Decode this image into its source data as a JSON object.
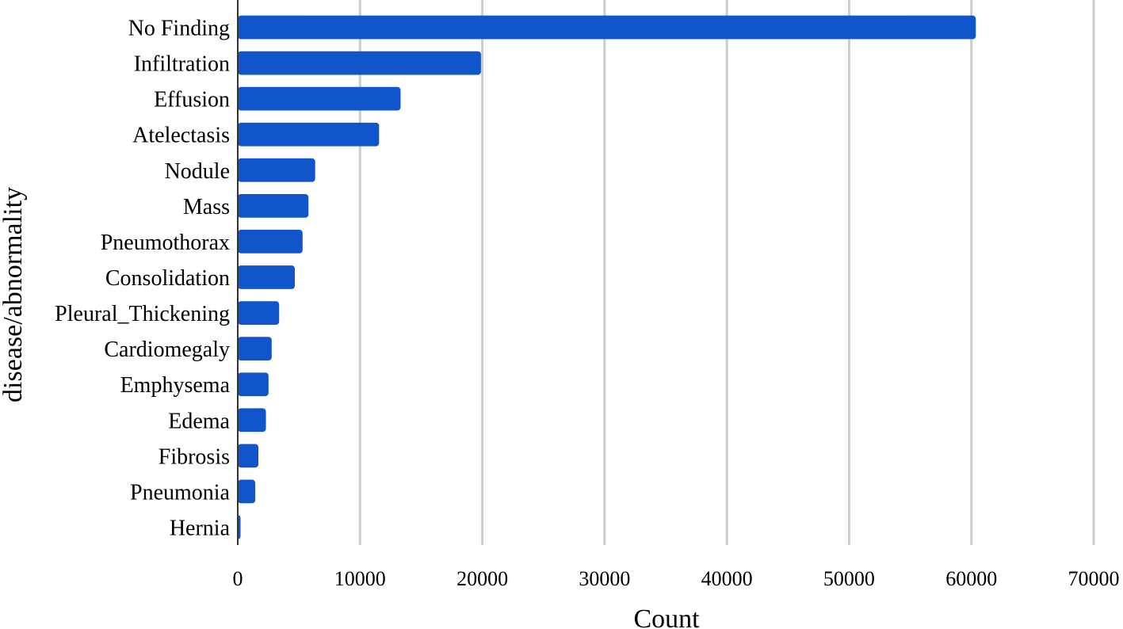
{
  "chart_data": {
    "type": "bar",
    "orientation": "horizontal",
    "title": "",
    "xlabel": "Count",
    "ylabel": "disease/abnormality",
    "categories": [
      "No Finding",
      "Infiltration",
      "Effusion",
      "Atelectasis",
      "Nodule",
      "Mass",
      "Pneumothorax",
      "Consolidation",
      "Pleural_Thickening",
      "Cardiomegaly",
      "Emphysema",
      "Edema",
      "Fibrosis",
      "Pneumonia",
      "Hernia"
    ],
    "values": [
      60361,
      19894,
      13317,
      11559,
      6331,
      5782,
      5302,
      4667,
      3385,
      2776,
      2516,
      2303,
      1686,
      1431,
      227
    ],
    "xlim": [
      0,
      70000
    ],
    "xticks": [
      0,
      10000,
      20000,
      30000,
      40000,
      50000,
      60000,
      70000
    ],
    "grid": true,
    "bar_color": "#1155cc",
    "grid_color": "#cccccc",
    "axis_color": "#333333"
  }
}
